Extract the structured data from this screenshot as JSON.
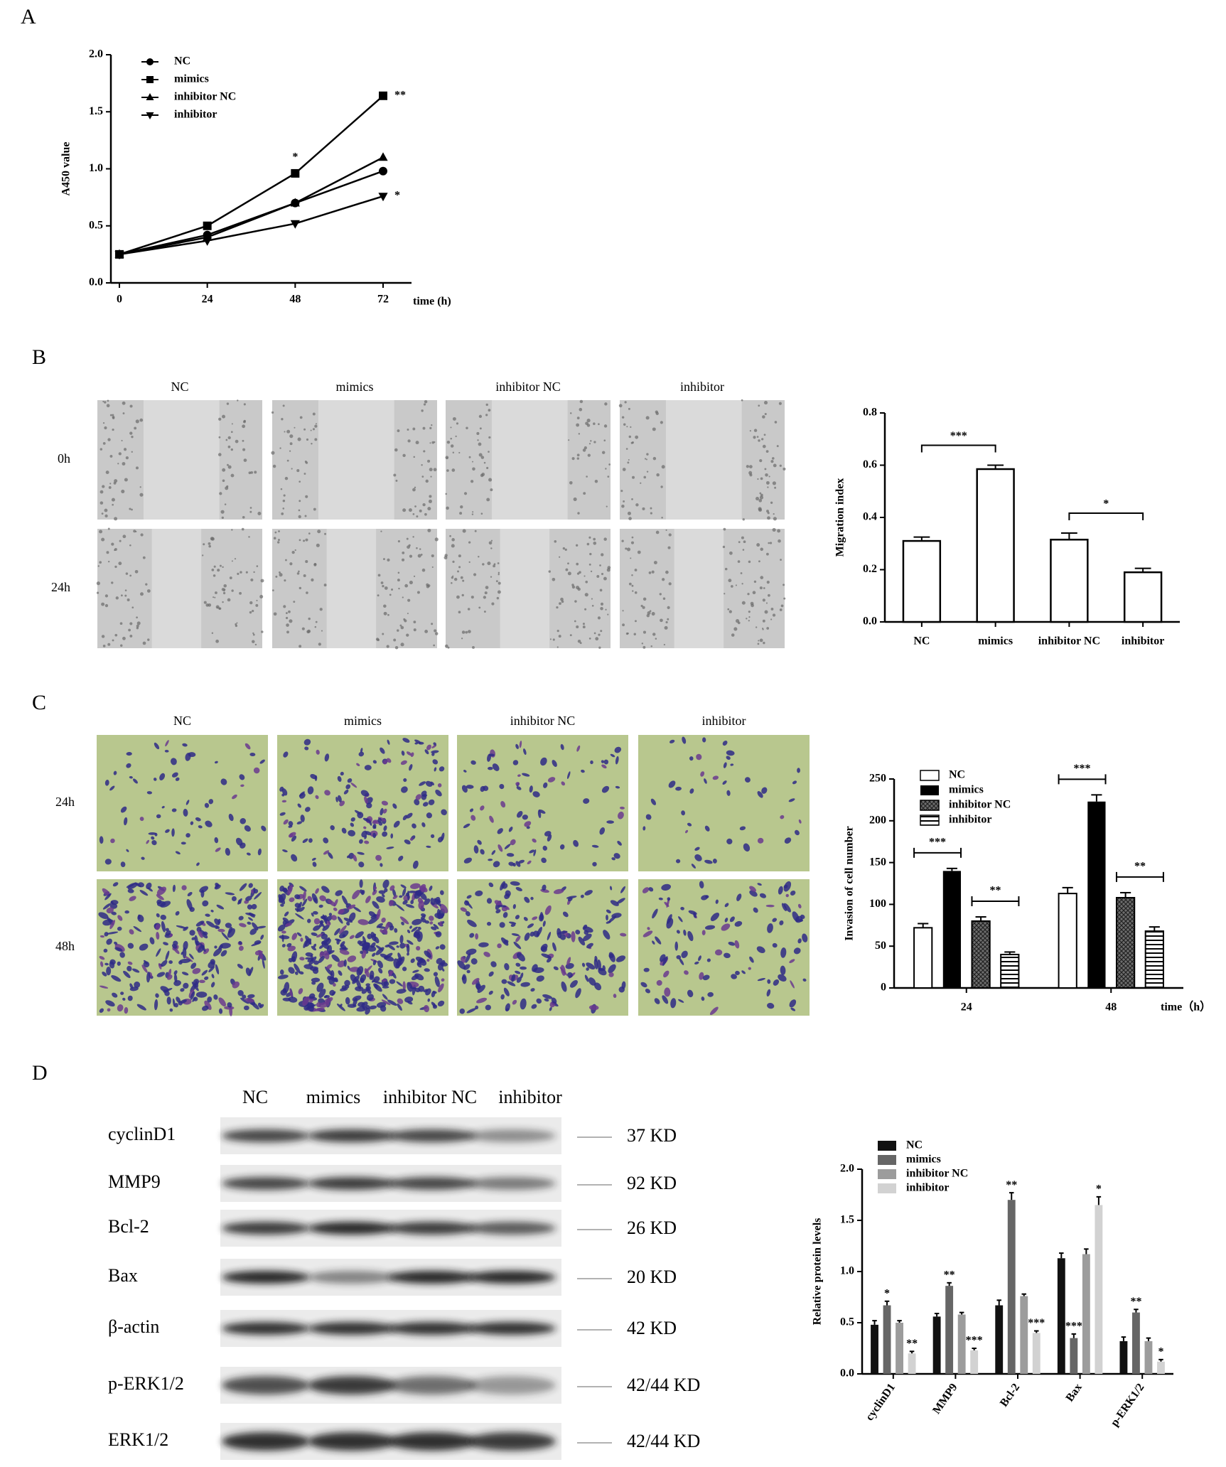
{
  "panel_labels": [
    "A",
    "B",
    "C",
    "D"
  ],
  "chart_data": [
    {
      "type": "line",
      "x_label": "time (h)",
      "y_label": "A450 value",
      "x": [
        0,
        24,
        48,
        72
      ],
      "xlim": [
        0,
        72
      ],
      "xticks": [
        0,
        24,
        48,
        72
      ],
      "ylim": [
        0,
        2
      ],
      "yticks": [
        {
          "value": 0,
          "label": "0.0"
        },
        0.5,
        {
          "value": 1,
          "label": "1.0"
        },
        1.5,
        {
          "value": 2,
          "label": "2.0"
        }
      ],
      "legend": "top-left",
      "series": [
        {
          "name": "NC",
          "color": "#000000",
          "marker": "circle",
          "values": [
            0.25,
            0.42,
            0.7,
            0.98
          ]
        },
        {
          "name": "mimics",
          "color": "#000000",
          "marker": "square",
          "values": [
            0.25,
            0.5,
            0.96,
            1.64
          ],
          "annotations": [
            null,
            null,
            "*",
            "**"
          ]
        },
        {
          "name": "inhibitor NC",
          "color": "#000000",
          "marker": "triangle",
          "values": [
            0.25,
            0.4,
            0.7,
            1.1
          ]
        },
        {
          "name": "inhibitor",
          "color": "#000000",
          "marker": "triangle-down",
          "values": [
            0.25,
            0.37,
            0.52,
            0.76
          ],
          "annotations": [
            null,
            null,
            null,
            "*"
          ]
        }
      ]
    },
    {
      "type": "bar",
      "y_label": "Migration index",
      "categories": [
        "NC",
        "mimics",
        "inhibitor NC",
        "inhibitor"
      ],
      "values": [
        0.31,
        0.585,
        0.315,
        0.19
      ],
      "errors": [
        0.015,
        0.015,
        0.025,
        0.015
      ],
      "color": "#ffffff",
      "ylim": [
        0,
        0.8
      ],
      "yticks": [
        {
          "value": 0,
          "label": "0.0"
        },
        0.2,
        0.4,
        0.6,
        0.8
      ],
      "brackets": [
        {
          "text": "***",
          "between": [
            0,
            1
          ]
        },
        {
          "text": "*",
          "between": [
            2,
            3
          ]
        }
      ]
    },
    {
      "type": "grouped_bar",
      "y_label": "Invasion of cell number",
      "x_label": "time（h）",
      "categories": [
        "24",
        "48"
      ],
      "ylim": [
        0,
        250
      ],
      "yticks": [
        0,
        50,
        100,
        150,
        200,
        250
      ],
      "legend": "top-left",
      "series": [
        {
          "name": "NC",
          "color": "#ffffff",
          "values": [
            72,
            113
          ],
          "errors": [
            5,
            7
          ]
        },
        {
          "name": "mimics",
          "color": "#000000",
          "values": [
            140,
            223
          ],
          "errors": [
            3,
            8
          ]
        },
        {
          "name": "inhibitor NC",
          "color": "#6e6e6e",
          "pattern": "crosshatch",
          "values": [
            80,
            108
          ],
          "errors": [
            5,
            6
          ]
        },
        {
          "name": "inhibitor",
          "color": "#ffffff",
          "pattern": "hstripes",
          "values": [
            40,
            68
          ],
          "errors": [
            3,
            5
          ]
        }
      ],
      "brackets": [
        {
          "text": "***",
          "category": 0,
          "between": [
            0,
            1
          ]
        },
        {
          "text": "**",
          "category": 0,
          "between": [
            2,
            3
          ]
        },
        {
          "text": "***",
          "category": 1,
          "between": [
            0,
            1
          ]
        },
        {
          "text": "**",
          "category": 1,
          "between": [
            2,
            3
          ]
        }
      ]
    },
    {
      "type": "grouped_bar",
      "y_label": "Relative protein levels",
      "categories": [
        "cyclinD1",
        "MMP9",
        "Bcl-2",
        "Bax",
        "p-ERK1/2"
      ],
      "ylim": [
        0,
        2
      ],
      "yticks": [
        {
          "value": 0,
          "label": "0.0"
        },
        0.5,
        {
          "value": 1,
          "label": "1.0"
        },
        1.5,
        {
          "value": 2,
          "label": "2.0"
        }
      ],
      "legend": "top-left",
      "rotated_categories": true,
      "series": [
        {
          "name": "NC",
          "color": "#111111",
          "values": [
            0.48,
            0.56,
            0.67,
            1.13,
            0.32
          ],
          "errors": [
            0.04,
            0.03,
            0.05,
            0.05,
            0.04
          ]
        },
        {
          "name": "mimics",
          "color": "#666666",
          "values": [
            0.67,
            0.86,
            1.7,
            0.35,
            0.6
          ],
          "errors": [
            0.04,
            0.03,
            0.07,
            0.04,
            0.03
          ],
          "annotations": [
            "*",
            "**",
            "**",
            "***",
            "**"
          ]
        },
        {
          "name": "inhibitor NC",
          "color": "#9c9c9c",
          "values": [
            0.5,
            0.58,
            0.76,
            1.17,
            0.32
          ],
          "errors": [
            0.02,
            0.02,
            0.02,
            0.05,
            0.03
          ]
        },
        {
          "name": "inhibitor",
          "color": "#d2d2d2",
          "values": [
            0.2,
            0.23,
            0.4,
            1.65,
            0.12
          ],
          "errors": [
            0.02,
            0.02,
            0.02,
            0.08,
            0.02
          ],
          "annotations": [
            "**",
            "***",
            "***",
            "*",
            "*"
          ]
        }
      ]
    }
  ],
  "micrographs": [
    {
      "columns": [
        "NC",
        "mimics",
        "inhibitor NC",
        "inhibitor"
      ],
      "rows": [
        "0h",
        "24h"
      ]
    },
    {
      "columns": [
        "NC",
        "mimics",
        "inhibitor NC",
        "inhibitor"
      ],
      "rows": [
        "24h",
        "48h"
      ]
    }
  ],
  "western_blot": {
    "lanes": [
      "NC",
      "mimics",
      "inhibitor NC",
      "inhibitor"
    ],
    "rows": [
      {
        "protein": "cyclinD1",
        "size": "37 KD"
      },
      {
        "protein": "MMP9",
        "size": "92 KD"
      },
      {
        "protein": "Bcl-2",
        "size": "26 KD"
      },
      {
        "protein": "Bax",
        "size": "20 KD"
      },
      {
        "protein": "β-actin",
        "size": "42 KD"
      },
      {
        "protein": "p-ERK1/2",
        "size": "42/44 KD"
      },
      {
        "protein": "ERK1/2",
        "size": "42/44 KD"
      }
    ]
  }
}
